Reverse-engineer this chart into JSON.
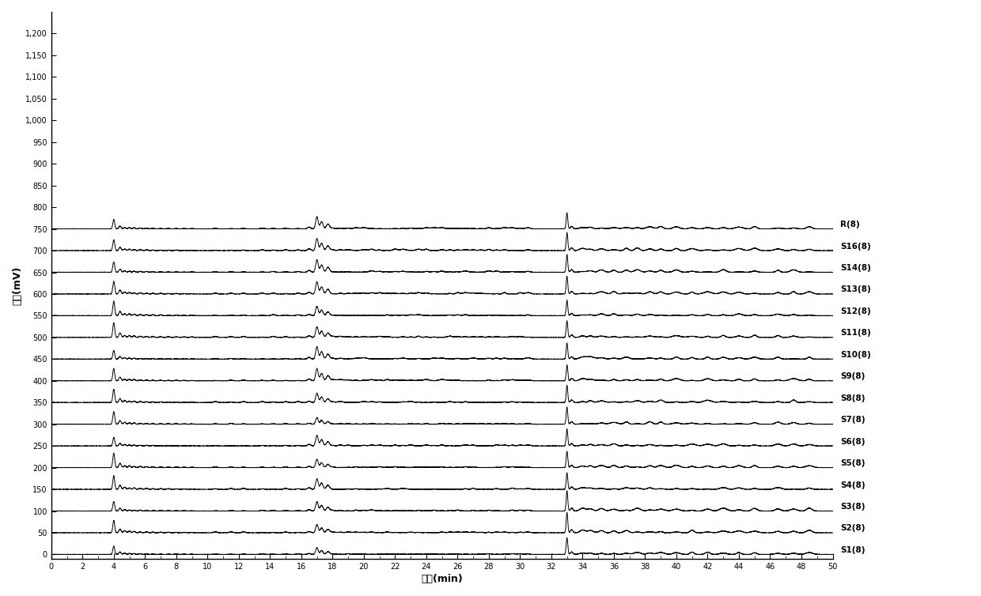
{
  "series_labels": [
    "S1(8)",
    "S2(8)",
    "S3(8)",
    "S4(8)",
    "S5(8)",
    "S6(8)",
    "S7(8)",
    "S8(8)",
    "S9(8)",
    "S10(8)",
    "S11(8)",
    "S12(8)",
    "S13(8)",
    "S14(8)",
    "S16(8)",
    "R(8)"
  ],
  "offsets": [
    0,
    50,
    100,
    150,
    200,
    250,
    300,
    350,
    400,
    450,
    500,
    550,
    600,
    650,
    700,
    750
  ],
  "ytick_values": [
    0,
    50,
    100,
    150,
    200,
    250,
    300,
    350,
    400,
    450,
    500,
    550,
    600,
    650,
    700,
    750,
    800,
    850,
    900,
    950,
    1000,
    1050,
    1100,
    1150,
    1200
  ],
  "ytick_labels": [
    "0",
    "50",
    "100",
    "150",
    "200",
    "250",
    "300",
    "350",
    "400",
    "450",
    "500",
    "550",
    "600",
    "650",
    "700",
    "750",
    "800",
    "850",
    "900",
    "950",
    "1,000",
    "1,050",
    "1,100",
    "1,150",
    "1,200"
  ],
  "xlim": [
    0,
    50
  ],
  "ylim": [
    -10,
    1250
  ],
  "xlabel": "时间(min)",
  "ylabel": "强度(mV)",
  "x_ticks": [
    0,
    2,
    4,
    6,
    8,
    10,
    12,
    14,
    16,
    18,
    20,
    22,
    24,
    26,
    28,
    30,
    32,
    34,
    36,
    38,
    40,
    42,
    44,
    46,
    48,
    50
  ],
  "background_color": "#ffffff",
  "line_color": "#000000",
  "label_fontsize": 7.5,
  "axis_fontsize": 7
}
